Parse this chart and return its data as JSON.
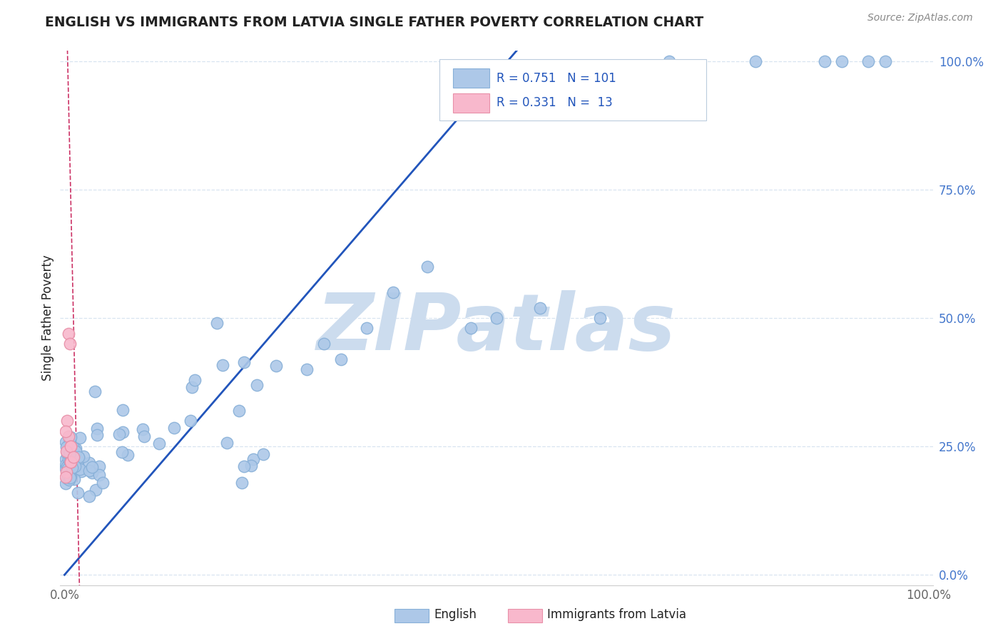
{
  "title": "ENGLISH VS IMMIGRANTS FROM LATVIA SINGLE FATHER POVERTY CORRELATION CHART",
  "source": "Source: ZipAtlas.com",
  "ylabel": "Single Father Poverty",
  "ytick_labels": [
    "0.0%",
    "25.0%",
    "50.0%",
    "75.0%",
    "100.0%"
  ],
  "ytick_values": [
    0.0,
    0.25,
    0.5,
    0.75,
    1.0
  ],
  "english_R": 0.751,
  "english_N": 101,
  "latvia_R": 0.331,
  "latvia_N": 13,
  "english_color": "#adc8e8",
  "english_edge_color": "#88b0d8",
  "latvia_color": "#f8b8cc",
  "latvia_edge_color": "#e890a8",
  "regression_english_color": "#2255bb",
  "regression_latvia_color": "#cc3366",
  "watermark_color": "#ccdcee",
  "legend_text_color": "#2255bb",
  "title_color": "#222222",
  "background_color": "#ffffff",
  "grid_color": "#d8e4f0",
  "axis_color": "#cccccc",
  "tick_color": "#666666",
  "right_tick_color": "#4477cc"
}
